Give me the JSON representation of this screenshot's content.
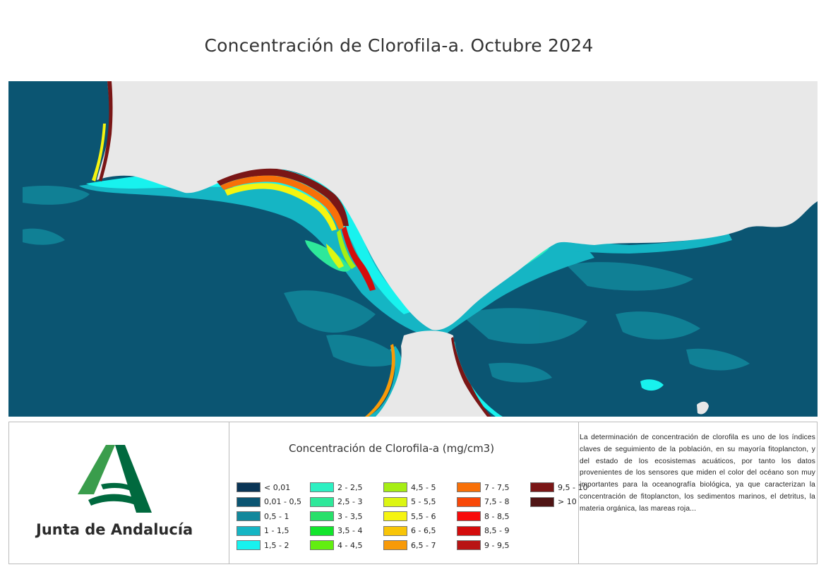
{
  "title": "Concentración de Clorofila-a. Octubre 2024",
  "map": {
    "land_color": "#e8e8e8",
    "ocean_color": "#0b5572"
  },
  "logo": {
    "wordmark": "Junta de Andalucía",
    "colors": {
      "green_light": "#3a9d4c",
      "green_dark": "#00693e"
    }
  },
  "legend": {
    "title": "Concentración de Clorofila-a (mg/cm3)",
    "items": [
      {
        "label": "< 0,01",
        "color": "#0a3556"
      },
      {
        "label": "0,01 - 0,5",
        "color": "#0b5572"
      },
      {
        "label": "0,5 - 1",
        "color": "#12889c"
      },
      {
        "label": "1 - 1,5",
        "color": "#15b5c4"
      },
      {
        "label": "1,5 - 2",
        "color": "#18f2ee"
      },
      {
        "label": "2 - 2,5",
        "color": "#2cf0c2"
      },
      {
        "label": "2,5 - 3",
        "color": "#2ee89a"
      },
      {
        "label": "3 - 3,5",
        "color": "#28e06a"
      },
      {
        "label": "3,5 - 4",
        "color": "#12e52c"
      },
      {
        "label": "4 - 4,5",
        "color": "#62ee10"
      },
      {
        "label": "4,5 - 5",
        "color": "#a6ee14"
      },
      {
        "label": "5 - 5,5",
        "color": "#dcf612"
      },
      {
        "label": "5,5 - 6",
        "color": "#f6f410"
      },
      {
        "label": "6 - 6,5",
        "color": "#f8c508"
      },
      {
        "label": "6,5 - 7",
        "color": "#f89a08"
      },
      {
        "label": "7 - 7,5",
        "color": "#f87008"
      },
      {
        "label": "7,5 - 8",
        "color": "#f84808"
      },
      {
        "label": "8 - 8,5",
        "color": "#f80a0a"
      },
      {
        "label": "8,5 - 9",
        "color": "#d40c0c"
      },
      {
        "label": "9 - 9,5",
        "color": "#b81414"
      },
      {
        "label": "9,5 - 10",
        "color": "#7a1616"
      },
      {
        "label": "> 10",
        "color": "#4f1414"
      }
    ]
  },
  "description": "La determinación de concentración de clorofila es uno de los índices claves de seguimiento de la población, en su mayoría fitoplancton, y del estado de los ecosistemas acuáticos, por tanto los datos provenientes de los sensores que miden el color del océano son muy importantes para la oceanografía biológica, ya que caracterizan la concentración de fitoplancton, los sedimentos marinos, el detritus, la materia orgánica, las mareas roja..."
}
